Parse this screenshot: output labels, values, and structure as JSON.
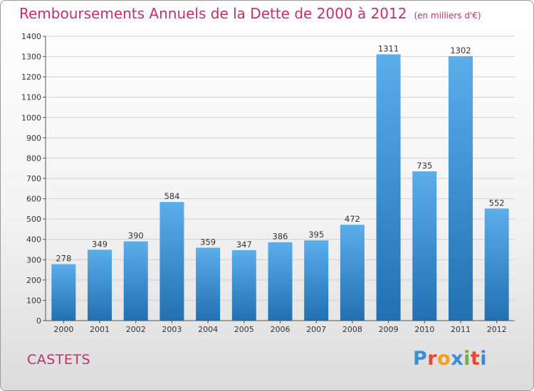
{
  "header": {
    "title": "Remboursements Annuels de la Dette de 2000 à 2012",
    "unit": "(en milliers d'€)"
  },
  "footer": {
    "commune": "CASTETS",
    "logo_letters": [
      "P",
      "r",
      "o",
      "x",
      "i",
      "t",
      "i"
    ],
    "logo_colors": [
      "#3a8ed8",
      "#e8472a",
      "#f2a01c",
      "#3a8ed8",
      "#6cb33f",
      "#e8472a",
      "#3a8ed8"
    ]
  },
  "chart_data": {
    "type": "bar",
    "categories": [
      "2000",
      "2001",
      "2002",
      "2003",
      "2004",
      "2005",
      "2006",
      "2007",
      "2008",
      "2009",
      "2010",
      "2011",
      "2012"
    ],
    "values": [
      278,
      349,
      390,
      584,
      359,
      347,
      386,
      395,
      472,
      1311,
      735,
      1302,
      552
    ],
    "title": "Remboursements Annuels de la Dette de 2000 à 2012",
    "ylim": [
      0,
      1400
    ],
    "yticks": [
      0,
      100,
      200,
      300,
      400,
      500,
      600,
      700,
      800,
      900,
      1000,
      1100,
      1200,
      1300,
      1400
    ],
    "grid": true,
    "colors": {
      "bar_top": "#5aaeea",
      "bar_bottom": "#2270b2"
    }
  }
}
